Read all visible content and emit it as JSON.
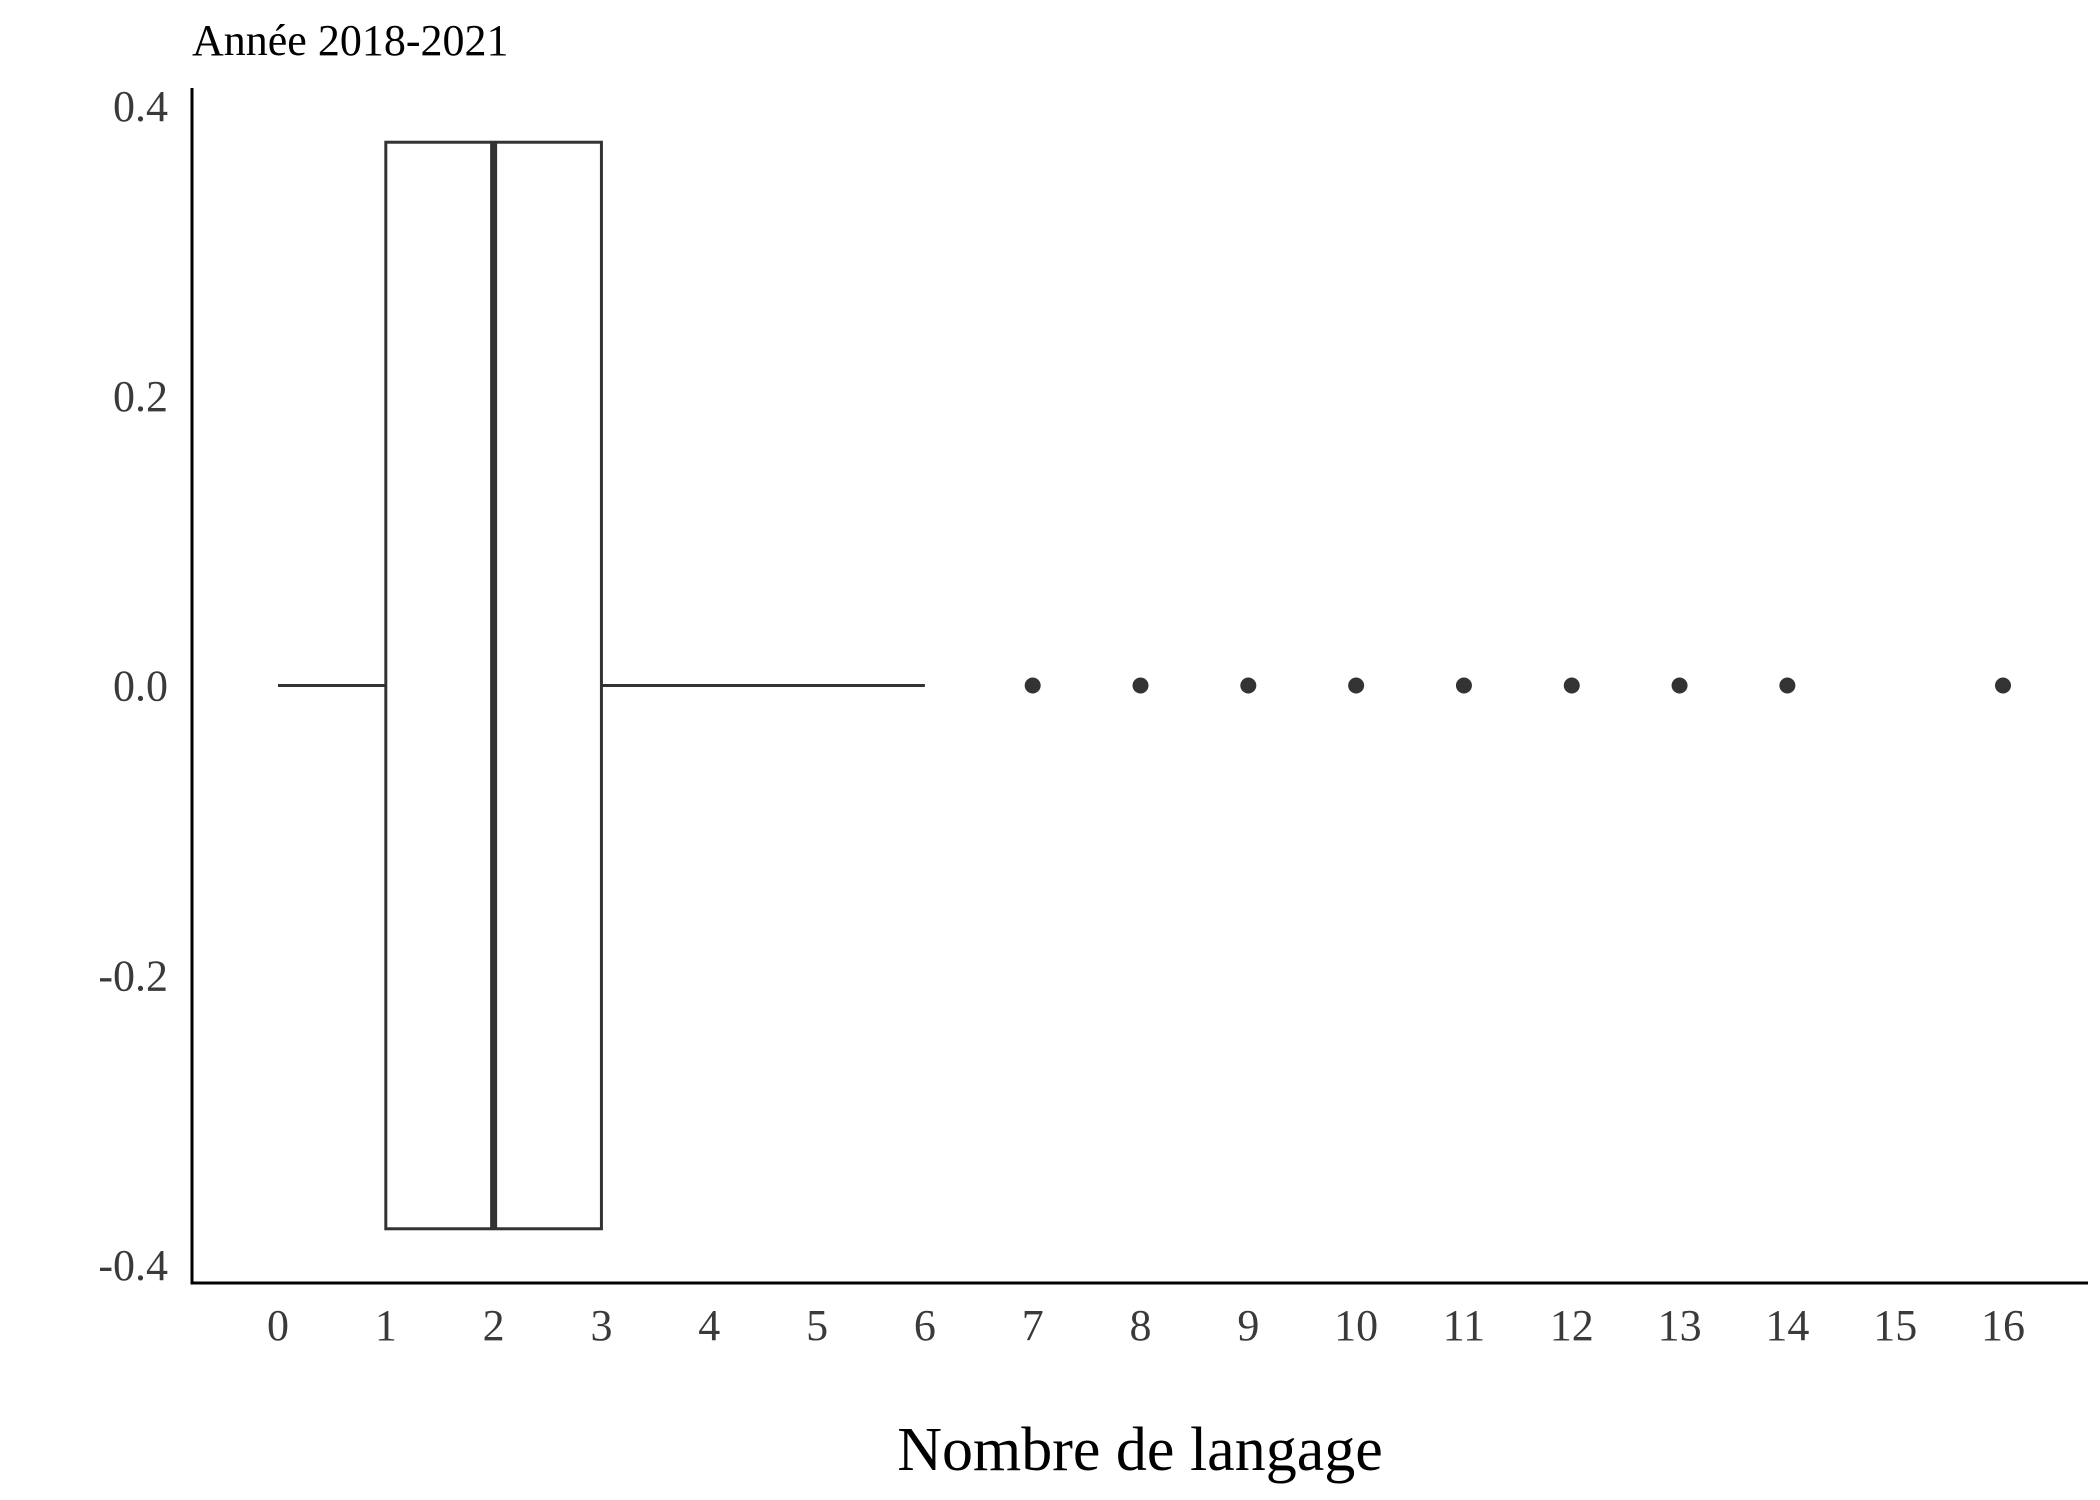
{
  "chart_data": {
    "type": "boxplot",
    "title": "Année 2018-2021",
    "xlabel": "Nombre de langage",
    "ylabel": "",
    "xlim": [
      -0.8,
      16.8
    ],
    "ylim": [
      -0.41,
      0.41
    ],
    "x_ticks": [
      0,
      1,
      2,
      3,
      4,
      5,
      6,
      7,
      8,
      9,
      10,
      11,
      12,
      13,
      14,
      15,
      16
    ],
    "y_ticks": [
      "0.4",
      "0.2",
      "0.0",
      "-0.2",
      "-0.4"
    ],
    "y_tick_values": [
      0.4,
      0.2,
      0.0,
      -0.2,
      -0.4
    ],
    "box": {
      "whisker_low": 0,
      "q1": 1,
      "median": 2,
      "q3": 3,
      "whisker_high": 6,
      "y_center": 0.0,
      "half_height": 0.375
    },
    "outliers": [
      7,
      8,
      9,
      10,
      11,
      12,
      13,
      14,
      16
    ],
    "grid": false,
    "colors": {
      "box_stroke": "#333333",
      "box_fill": "#ffffff",
      "axis": "#000000"
    }
  }
}
